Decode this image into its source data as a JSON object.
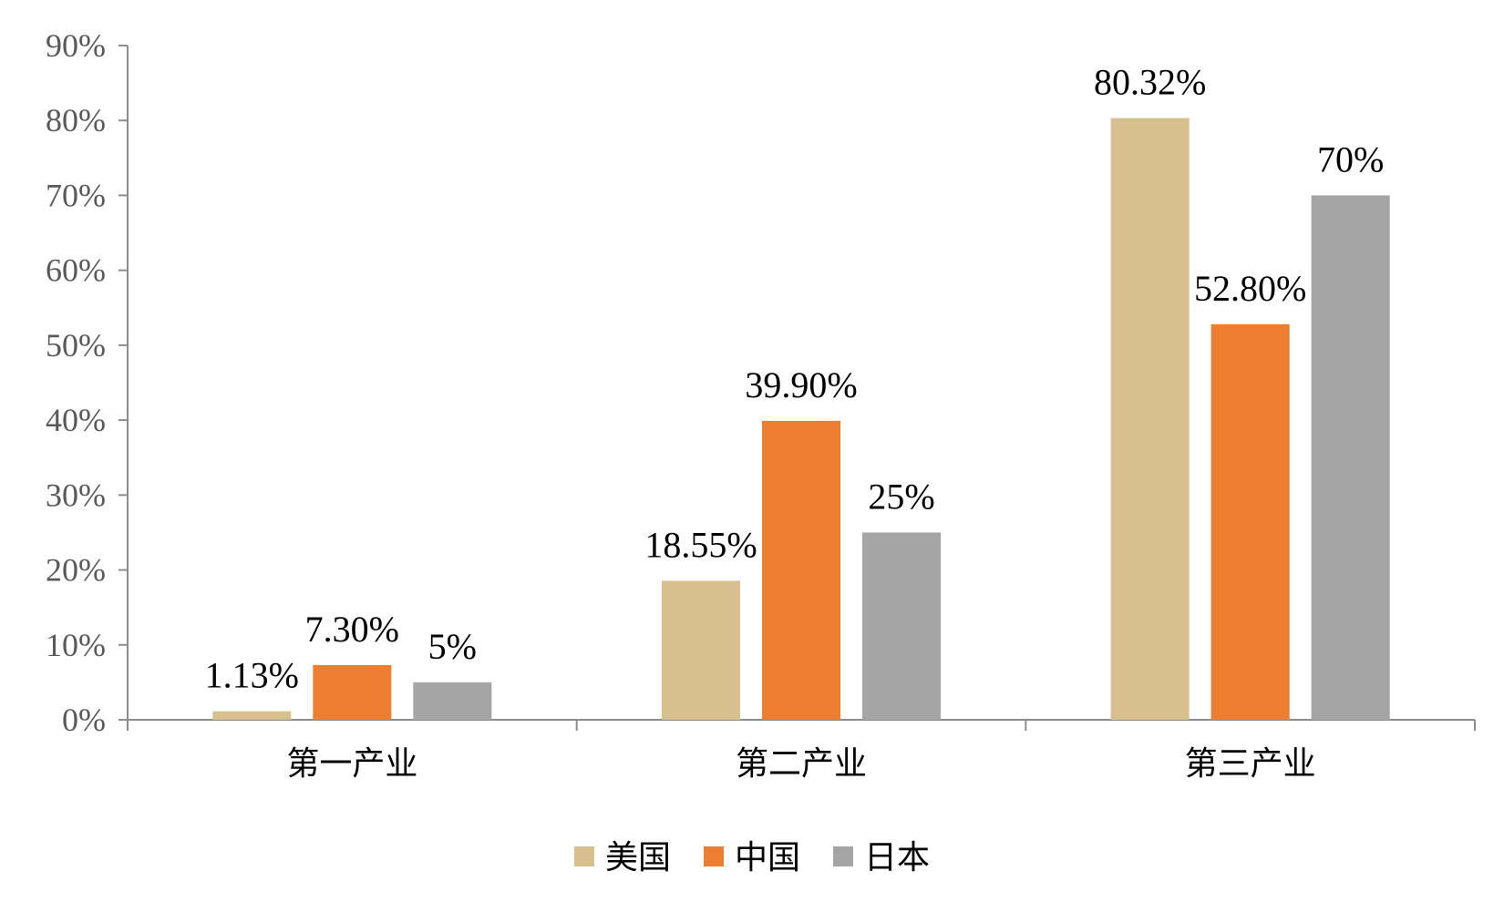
{
  "chart_data": {
    "type": "bar",
    "categories": [
      "第一产业",
      "第二产业",
      "第三产业"
    ],
    "series": [
      {
        "name": "美国",
        "values": [
          1.13,
          18.55,
          80.32
        ],
        "labels": [
          "1.13%",
          "18.55%",
          "80.32%"
        ],
        "color": "#d7c08d"
      },
      {
        "name": "中国",
        "values": [
          7.3,
          39.9,
          52.8
        ],
        "labels": [
          "7.30%",
          "39.90%",
          "52.80%"
        ],
        "color": "#ed7d31"
      },
      {
        "name": "日本",
        "values": [
          5,
          25,
          70
        ],
        "labels": [
          "5%",
          "25%",
          "70%"
        ],
        "color": "#a5a5a5"
      }
    ],
    "ylim": [
      0,
      90
    ],
    "yticks": [
      0,
      10,
      20,
      30,
      40,
      50,
      60,
      70,
      80,
      90
    ],
    "ytick_labels": [
      "0%",
      "10%",
      "20%",
      "30%",
      "40%",
      "50%",
      "60%",
      "70%",
      "80%",
      "90%"
    ],
    "title": "",
    "xlabel": "",
    "ylabel": "",
    "grid": false,
    "legend_position": "bottom"
  }
}
